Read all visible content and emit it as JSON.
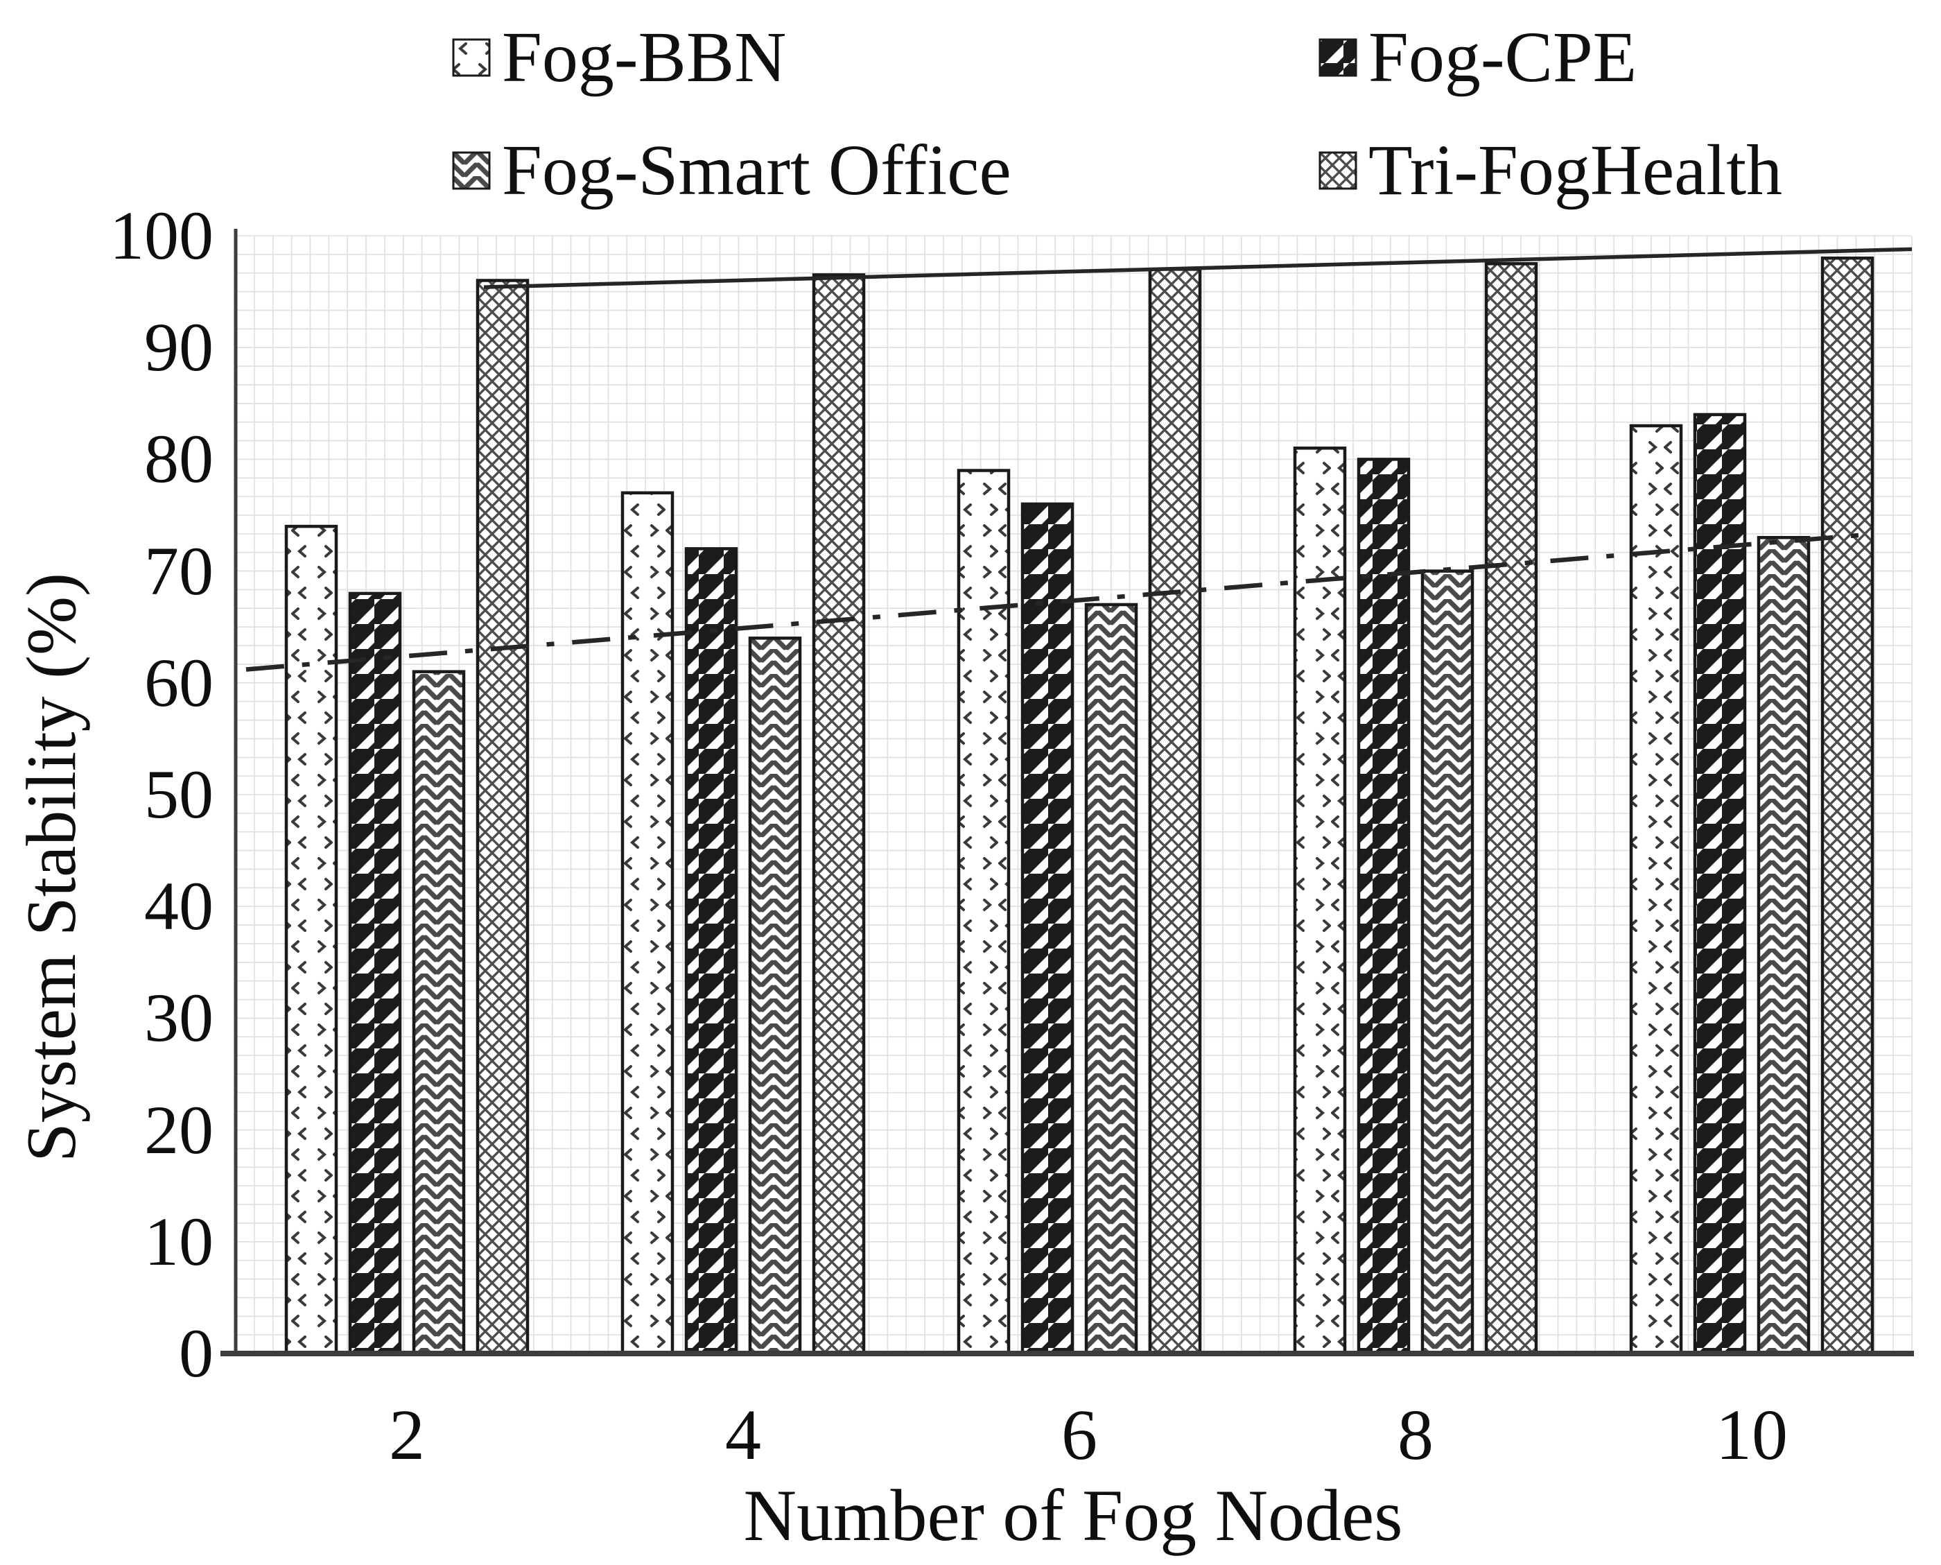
{
  "legend": {
    "items": [
      {
        "label": "Fog-BBN",
        "pattern": "bbn-dots"
      },
      {
        "label": "Fog-CPE",
        "pattern": "cpe-diagonal"
      },
      {
        "label": "Fog-Smart Office",
        "pattern": "smart-weave"
      },
      {
        "label": "Tri-FogHealth",
        "pattern": "tri-crosshatch"
      }
    ]
  },
  "chart_data": {
    "type": "bar",
    "title": "",
    "xlabel": "Number of Fog Nodes",
    "ylabel": "System Stability (%)",
    "categories": [
      "2",
      "4",
      "6",
      "8",
      "10"
    ],
    "series": [
      {
        "name": "Fog-BBN",
        "pattern": "bbn-dots",
        "values": [
          74,
          77,
          79,
          81,
          83
        ]
      },
      {
        "name": "Fog-CPE",
        "pattern": "cpe-diagonal",
        "values": [
          68,
          72,
          76,
          80,
          84
        ]
      },
      {
        "name": "Fog-Smart Office",
        "pattern": "smart-weave",
        "values": [
          61,
          64,
          67,
          70,
          73
        ]
      },
      {
        "name": "Tri-FogHealth",
        "pattern": "tri-crosshatch",
        "values": [
          96,
          96.5,
          97,
          97.5,
          98
        ]
      }
    ],
    "trendlines": [
      {
        "series": "Fog-Smart Office",
        "style": "dash-dot",
        "from": 61.2,
        "to": 73.3
      },
      {
        "series": "Tri-FogHealth",
        "style": "solid",
        "from": 95.4,
        "to": 98.8
      }
    ],
    "ylim": [
      0,
      100
    ],
    "yticks": [
      0,
      10,
      20,
      30,
      40,
      50,
      60,
      70,
      80,
      90,
      100
    ],
    "grid": true,
    "legend_position": "top",
    "colors": {
      "bar_outline": "#1a1a1a",
      "axis": "#3d3d3d",
      "gridline": "#dedede",
      "trendline": "#262626",
      "background": "#ffffff"
    }
  }
}
